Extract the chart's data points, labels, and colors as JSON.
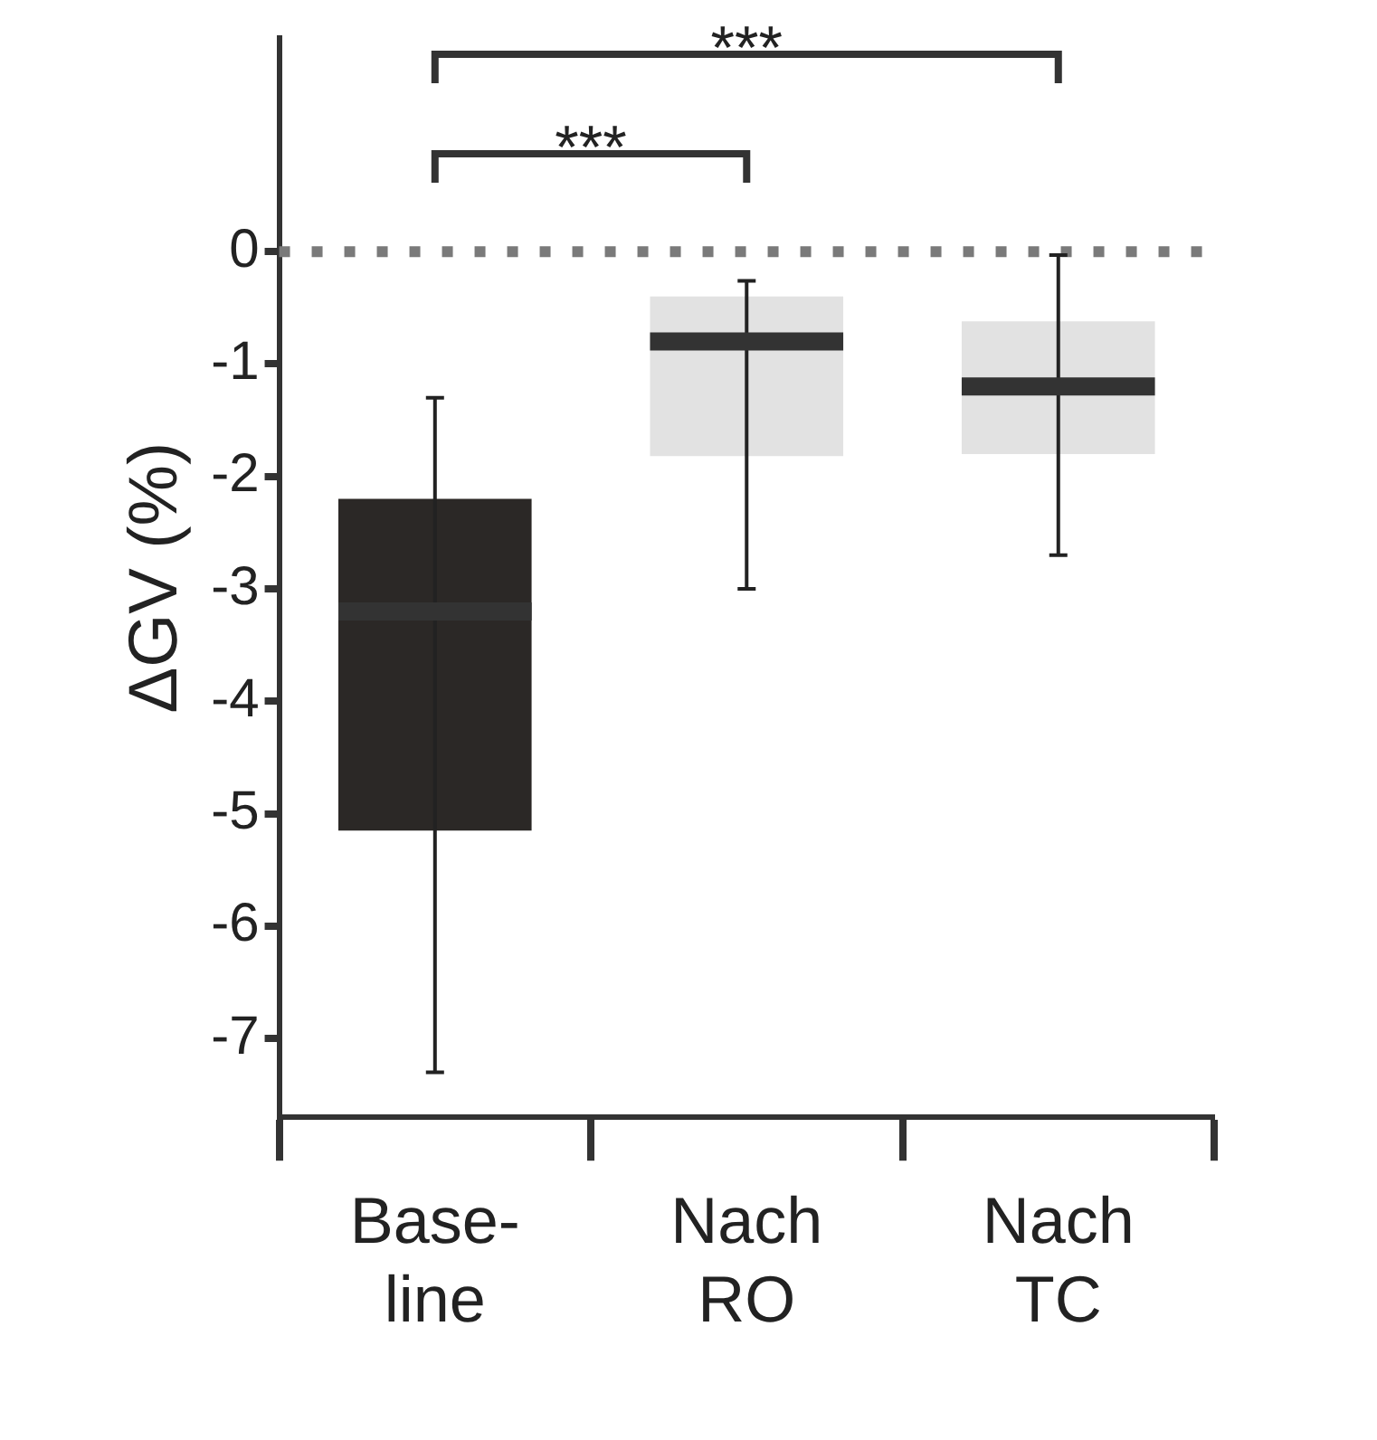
{
  "chart_data": {
    "type": "box",
    "ylabel": "ΔGV (%)",
    "categories": [
      "Base- line",
      "Nach RO",
      "Nach TC"
    ],
    "colors": [
      "#2b2826",
      "#e2e2e2",
      "#e2e2e2"
    ],
    "boxes": [
      {
        "low": -7.3,
        "q1": -5.15,
        "median": -3.2,
        "q3": -2.2,
        "high": -1.3
      },
      {
        "low": -3.0,
        "q1": -1.82,
        "median": -0.8,
        "q3": -0.4,
        "high": -0.26
      },
      {
        "low": -2.7,
        "q1": -1.8,
        "median": -1.2,
        "q3": -0.62,
        "high": -0.03
      }
    ],
    "ylim": [
      -7.7,
      1.9
    ],
    "yticks": [
      -7,
      -6,
      -5,
      -4,
      -3,
      -2,
      -1,
      0
    ],
    "grid": false,
    "legend": false,
    "ref_lines": [
      {
        "axis": "y",
        "value": 0,
        "color": "#7a7a7a",
        "line_style": "dotted"
      }
    ],
    "annotations": [
      "***",
      "***"
    ]
  }
}
